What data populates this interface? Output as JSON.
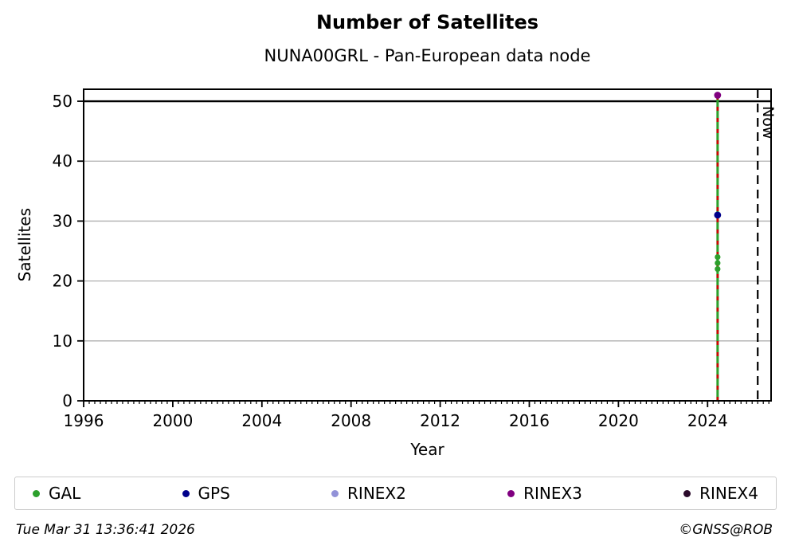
{
  "footer": {
    "timestamp": "Tue Mar 31 13:36:41 2026",
    "credit": "©GNSS@ROB"
  },
  "chart_data": {
    "type": "scatter",
    "title": "Number of Satellites",
    "subtitle": "NUNA00GRL - Pan-European data node",
    "xlabel": "Year",
    "ylabel": "Satellites",
    "xlim": [
      1996,
      2026.85
    ],
    "ylim": [
      0,
      52
    ],
    "x_major_ticks": [
      1996,
      2000,
      2004,
      2008,
      2012,
      2016,
      2020,
      2024
    ],
    "x_minor_step": 0.25,
    "y_major_ticks": [
      0,
      10,
      20,
      30,
      40,
      50
    ],
    "grid": "horizontal-only",
    "gridline_color": "#b0b0b0",
    "reference_hline": {
      "y": 50,
      "color": "#000000"
    },
    "now_marker": {
      "x": 2026.25,
      "label": "Now",
      "style": "dashed",
      "color": "#000000"
    },
    "observation_line": {
      "x": 2024.45,
      "y_from": 0,
      "y_to": 51,
      "solid_color": "#2ca02c",
      "dash_color": "#d40000"
    },
    "series": [
      {
        "name": "GAL",
        "color": "#2ca02c",
        "points": [
          [
            2024.45,
            22
          ],
          [
            2024.45,
            23
          ],
          [
            2024.45,
            24
          ]
        ]
      },
      {
        "name": "GPS",
        "color": "#00008b",
        "points": [
          [
            2024.45,
            31
          ]
        ]
      },
      {
        "name": "RINEX2",
        "color": "#9292d8",
        "points": []
      },
      {
        "name": "RINEX3",
        "color": "#800080",
        "points": [
          [
            2024.45,
            51
          ]
        ]
      },
      {
        "name": "RINEX4",
        "color": "#2b0b2b",
        "points": []
      }
    ],
    "legend_position": "bottom",
    "legend": [
      "GAL",
      "GPS",
      "RINEX2",
      "RINEX3",
      "RINEX4"
    ]
  }
}
